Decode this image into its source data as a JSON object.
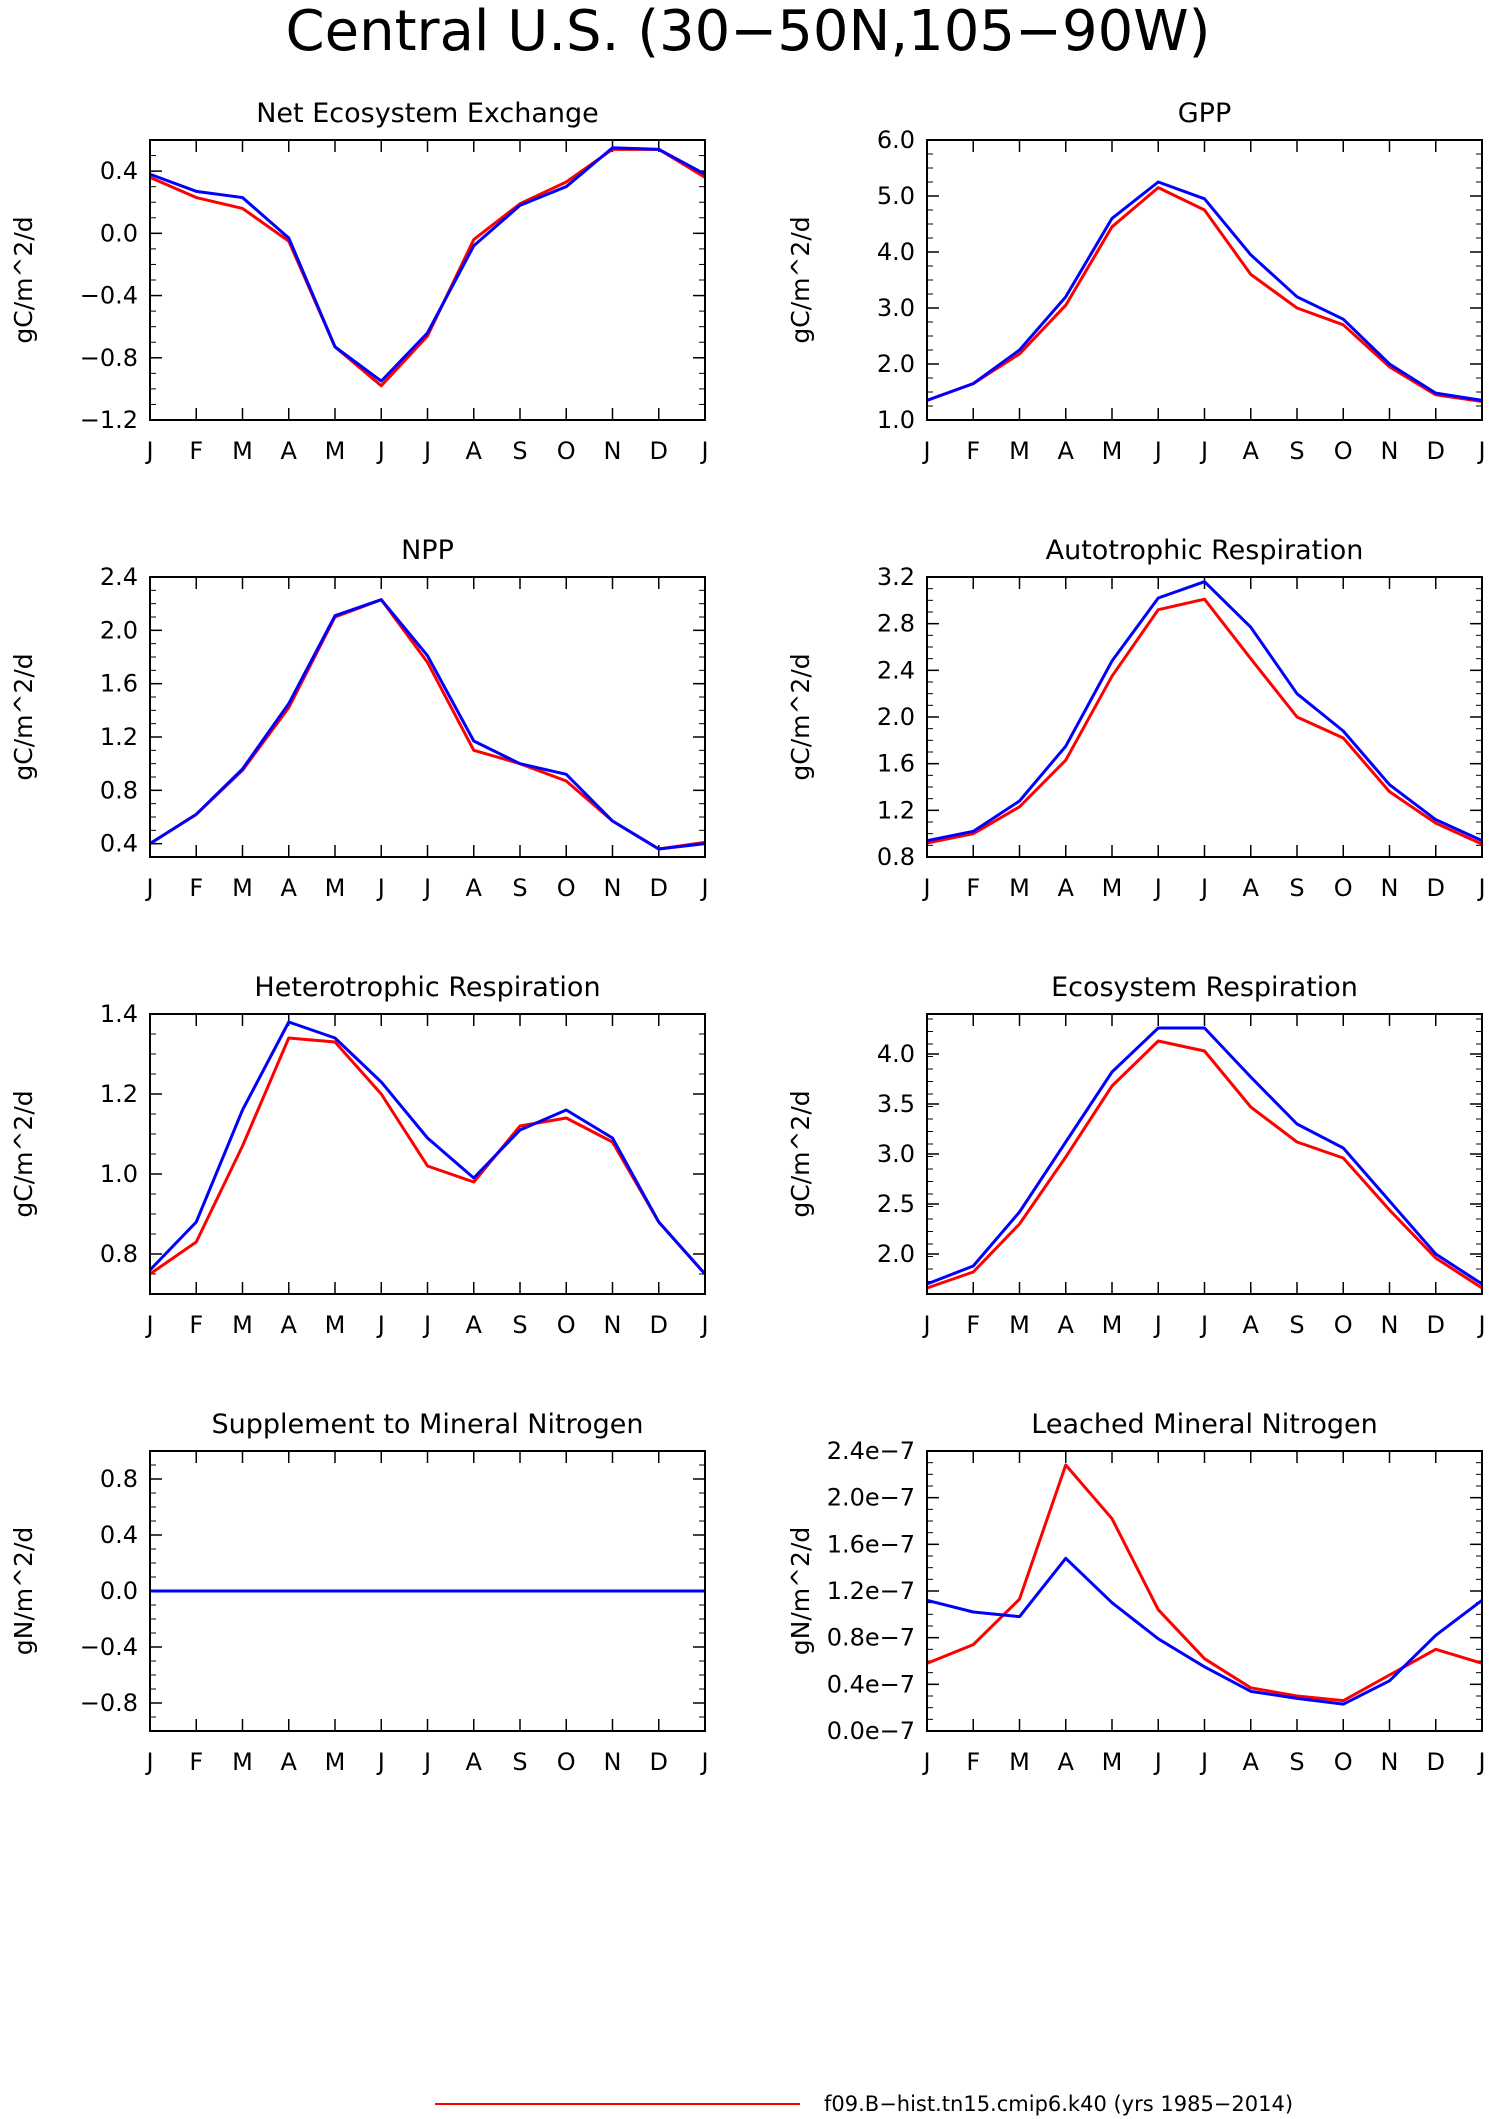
{
  "figure": {
    "title": "Central U.S. (30−50N,105−90W)"
  },
  "legend": {
    "entries": [
      {
        "label": "f09.B−hist.tn15.cmip6.k40 (yrs 1985−2014)",
        "color": "#ff0000"
      }
    ]
  },
  "colors": {
    "series_red": "#ff0000",
    "series_blue": "#0000ff",
    "axes": "#000000"
  },
  "chart_data": [
    {
      "type": "line",
      "title": "Net Ecosystem Exchange",
      "ylabel": "gC/m^2/d",
      "categories": [
        "J",
        "F",
        "M",
        "A",
        "M",
        "J",
        "J",
        "A",
        "S",
        "O",
        "N",
        "D",
        "J"
      ],
      "ylim": [
        -1.2,
        0.6
      ],
      "yticks": [
        -1.2,
        -0.8,
        -0.4,
        0.0,
        0.4
      ],
      "ytick_labels": [
        "−1.2",
        "−0.8",
        "−0.4",
        "0.0",
        "0.4"
      ],
      "series": [
        {
          "color": "#ff0000",
          "values": [
            0.36,
            0.23,
            0.16,
            -0.05,
            -0.73,
            -0.98,
            -0.66,
            -0.04,
            0.19,
            0.33,
            0.54,
            0.54,
            0.36
          ]
        },
        {
          "color": "#0000ff",
          "values": [
            0.38,
            0.27,
            0.23,
            -0.03,
            -0.73,
            -0.95,
            -0.64,
            -0.08,
            0.18,
            0.3,
            0.55,
            0.54,
            0.38
          ]
        }
      ]
    },
    {
      "type": "line",
      "title": "GPP",
      "ylabel": "gC/m^2/d",
      "categories": [
        "J",
        "F",
        "M",
        "A",
        "M",
        "J",
        "J",
        "A",
        "S",
        "O",
        "N",
        "D",
        "J"
      ],
      "ylim": [
        1.0,
        6.0
      ],
      "yticks": [
        1.0,
        2.0,
        3.0,
        4.0,
        5.0,
        6.0
      ],
      "ytick_labels": [
        "1.0",
        "2.0",
        "3.0",
        "4.0",
        "5.0",
        "6.0"
      ],
      "series": [
        {
          "color": "#ff0000",
          "values": [
            1.35,
            1.65,
            2.18,
            3.05,
            4.45,
            5.15,
            4.75,
            3.6,
            3.0,
            2.7,
            1.95,
            1.45,
            1.33
          ]
        },
        {
          "color": "#0000ff",
          "values": [
            1.35,
            1.65,
            2.25,
            3.2,
            4.6,
            5.25,
            4.95,
            3.95,
            3.2,
            2.8,
            2.0,
            1.48,
            1.35
          ]
        }
      ]
    },
    {
      "type": "line",
      "title": "NPP",
      "ylabel": "gC/m^2/d",
      "categories": [
        "J",
        "F",
        "M",
        "A",
        "M",
        "J",
        "J",
        "A",
        "S",
        "O",
        "N",
        "D",
        "J"
      ],
      "ylim": [
        0.3,
        2.4
      ],
      "yticks": [
        0.4,
        0.8,
        1.2,
        1.6,
        2.0,
        2.4
      ],
      "ytick_labels": [
        "0.4",
        "0.8",
        "1.2",
        "1.6",
        "2.0",
        "2.4"
      ],
      "series": [
        {
          "color": "#ff0000",
          "values": [
            0.4,
            0.62,
            0.95,
            1.42,
            2.1,
            2.23,
            1.76,
            1.1,
            1.0,
            0.87,
            0.57,
            0.36,
            0.41
          ]
        },
        {
          "color": "#0000ff",
          "values": [
            0.4,
            0.62,
            0.96,
            1.45,
            2.11,
            2.23,
            1.81,
            1.17,
            1.0,
            0.92,
            0.57,
            0.36,
            0.4
          ]
        }
      ]
    },
    {
      "type": "line",
      "title": "Autotrophic Respiration",
      "ylabel": "gC/m^2/d",
      "categories": [
        "J",
        "F",
        "M",
        "A",
        "M",
        "J",
        "J",
        "A",
        "S",
        "O",
        "N",
        "D",
        "J"
      ],
      "ylim": [
        0.8,
        3.2
      ],
      "yticks": [
        0.8,
        1.2,
        1.6,
        2.0,
        2.4,
        2.8,
        3.2
      ],
      "ytick_labels": [
        "0.8",
        "1.2",
        "1.6",
        "2.0",
        "2.4",
        "2.8",
        "3.2"
      ],
      "series": [
        {
          "color": "#ff0000",
          "values": [
            0.92,
            1.0,
            1.23,
            1.63,
            2.35,
            2.92,
            3.01,
            2.5,
            2.0,
            1.82,
            1.36,
            1.09,
            0.91
          ]
        },
        {
          "color": "#0000ff",
          "values": [
            0.94,
            1.02,
            1.28,
            1.75,
            2.48,
            3.02,
            3.16,
            2.77,
            2.2,
            1.88,
            1.42,
            1.12,
            0.94
          ]
        }
      ]
    },
    {
      "type": "line",
      "title": "Heterotrophic Respiration",
      "ylabel": "gC/m^2/d",
      "categories": [
        "J",
        "F",
        "M",
        "A",
        "M",
        "J",
        "J",
        "A",
        "S",
        "O",
        "N",
        "D",
        "J"
      ],
      "ylim": [
        0.7,
        1.4
      ],
      "yticks": [
        0.8,
        1.0,
        1.2,
        1.4
      ],
      "ytick_labels": [
        "0.8",
        "1.0",
        "1.2",
        "1.4"
      ],
      "series": [
        {
          "color": "#ff0000",
          "values": [
            0.75,
            0.83,
            1.07,
            1.34,
            1.33,
            1.2,
            1.02,
            0.98,
            1.12,
            1.14,
            1.08,
            0.88,
            0.75
          ]
        },
        {
          "color": "#0000ff",
          "values": [
            0.76,
            0.88,
            1.16,
            1.38,
            1.34,
            1.23,
            1.09,
            0.99,
            1.11,
            1.16,
            1.09,
            0.88,
            0.75
          ]
        }
      ]
    },
    {
      "type": "line",
      "title": "Ecosystem Respiration",
      "ylabel": "gC/m^2/d",
      "categories": [
        "J",
        "F",
        "M",
        "A",
        "M",
        "J",
        "J",
        "A",
        "S",
        "O",
        "N",
        "D",
        "J"
      ],
      "ylim": [
        1.6,
        4.4
      ],
      "yticks": [
        2.0,
        2.5,
        3.0,
        3.5,
        4.0
      ],
      "ytick_labels": [
        "2.0",
        "2.5",
        "3.0",
        "3.5",
        "4.0"
      ],
      "series": [
        {
          "color": "#ff0000",
          "values": [
            1.66,
            1.82,
            2.3,
            2.97,
            3.68,
            4.13,
            4.03,
            3.47,
            3.12,
            2.96,
            2.44,
            1.96,
            1.66
          ]
        },
        {
          "color": "#0000ff",
          "values": [
            1.7,
            1.88,
            2.42,
            3.12,
            3.82,
            4.26,
            4.26,
            3.77,
            3.3,
            3.06,
            2.53,
            2.0,
            1.7
          ]
        }
      ]
    },
    {
      "type": "line",
      "title": "Supplement to Mineral Nitrogen",
      "ylabel": "gN/m^2/d",
      "categories": [
        "J",
        "F",
        "M",
        "A",
        "M",
        "J",
        "J",
        "A",
        "S",
        "O",
        "N",
        "D",
        "J"
      ],
      "ylim": [
        -1.0,
        1.0
      ],
      "yticks": [
        -0.8,
        -0.4,
        0.0,
        0.4,
        0.8
      ],
      "ytick_labels": [
        "−0.8",
        "−0.4",
        "0.0",
        "0.4",
        "0.8"
      ],
      "series": [
        {
          "color": "#ff0000",
          "values": [
            0,
            0,
            0,
            0,
            0,
            0,
            0,
            0,
            0,
            0,
            0,
            0,
            0
          ]
        },
        {
          "color": "#0000ff",
          "values": [
            0,
            0,
            0,
            0,
            0,
            0,
            0,
            0,
            0,
            0,
            0,
            0,
            0
          ]
        }
      ]
    },
    {
      "type": "line",
      "title": "Leached Mineral Nitrogen",
      "ylabel": "gN/m^2/d",
      "categories": [
        "J",
        "F",
        "M",
        "A",
        "M",
        "J",
        "J",
        "A",
        "S",
        "O",
        "N",
        "D",
        "J"
      ],
      "ylim": [
        0.0,
        2.4e-07
      ],
      "yticks": [
        0.0,
        4e-08,
        8e-08,
        1.2e-07,
        1.6e-07,
        2e-07,
        2.4e-07
      ],
      "ytick_labels": [
        "0.0e−7",
        "0.4e−7",
        "0.8e−7",
        "1.2e−7",
        "1.6e−7",
        "2.0e−7",
        "2.4e−7"
      ],
      "series": [
        {
          "color": "#ff0000",
          "values": [
            5.8e-08,
            7.4e-08,
            1.13e-07,
            2.28e-07,
            1.82e-07,
            1.04e-07,
            6.2e-08,
            3.7e-08,
            3e-08,
            2.6e-08,
            4.8e-08,
            7e-08,
            5.8e-08
          ]
        },
        {
          "color": "#0000ff",
          "values": [
            1.12e-07,
            1.02e-07,
            9.8e-08,
            1.48e-07,
            1.1e-07,
            7.9e-08,
            5.5e-08,
            3.4e-08,
            2.8e-08,
            2.3e-08,
            4.3e-08,
            8.2e-08,
            1.12e-07
          ]
        }
      ]
    }
  ]
}
